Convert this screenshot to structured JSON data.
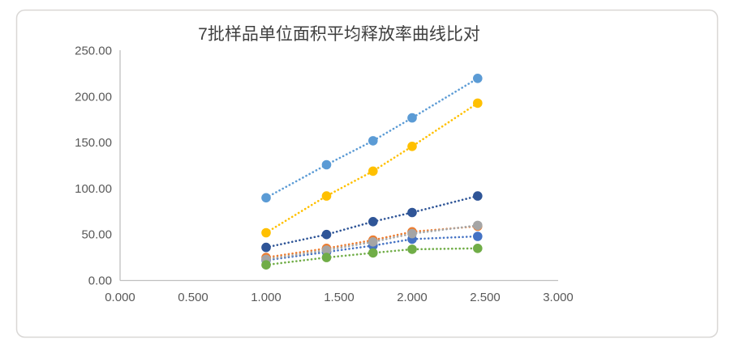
{
  "chart_data": {
    "type": "scatter",
    "title": "7批样品单位面积平均释放率曲线比对",
    "xlabel": "",
    "ylabel": "",
    "xlim": [
      0,
      3
    ],
    "ylim": [
      0,
      250
    ],
    "x_tick_values": [
      0,
      0.5,
      1,
      1.5,
      2,
      2.5,
      3
    ],
    "x_tick_labels": [
      "0.000",
      "0.500",
      "1.000",
      "1.500",
      "2.000",
      "2.500",
      "3.000"
    ],
    "y_tick_values": [
      0,
      50,
      100,
      150,
      200,
      250
    ],
    "y_tick_labels": [
      "0.00",
      "50.00",
      "100.00",
      "150.00",
      "200.00",
      "250.00"
    ],
    "grid": false,
    "legend": "none",
    "marker": "circle",
    "line_style": "round-dot",
    "x": [
      1.0,
      1.414,
      1.732,
      2.0,
      2.449
    ],
    "series": [
      {
        "name": "series-blue",
        "color": "#4472C4",
        "values": [
          22,
          31,
          38,
          45,
          48
        ]
      },
      {
        "name": "series-orange",
        "color": "#ED7D31",
        "values": [
          25,
          35,
          44,
          53,
          59
        ]
      },
      {
        "name": "series-gray",
        "color": "#A5A5A5",
        "values": [
          23,
          33,
          42,
          51,
          60
        ]
      },
      {
        "name": "series-yellow",
        "color": "#FFC000",
        "values": [
          52,
          92,
          119,
          146,
          193
        ]
      },
      {
        "name": "series-light-blue",
        "color": "#5B9BD5",
        "values": [
          90,
          126,
          152,
          177,
          220
        ]
      },
      {
        "name": "series-green",
        "color": "#70AD47",
        "values": [
          17,
          25,
          30,
          34,
          35
        ]
      },
      {
        "name": "series-navy",
        "color": "#2F5597",
        "values": [
          36,
          50,
          64,
          74,
          92
        ]
      }
    ],
    "colors": {
      "title_text": "#404040",
      "tick_text": "#595959",
      "axis_line": "#BFBFBF",
      "chart_border": "#D9D7D5",
      "background": "#FFFFFF"
    }
  }
}
